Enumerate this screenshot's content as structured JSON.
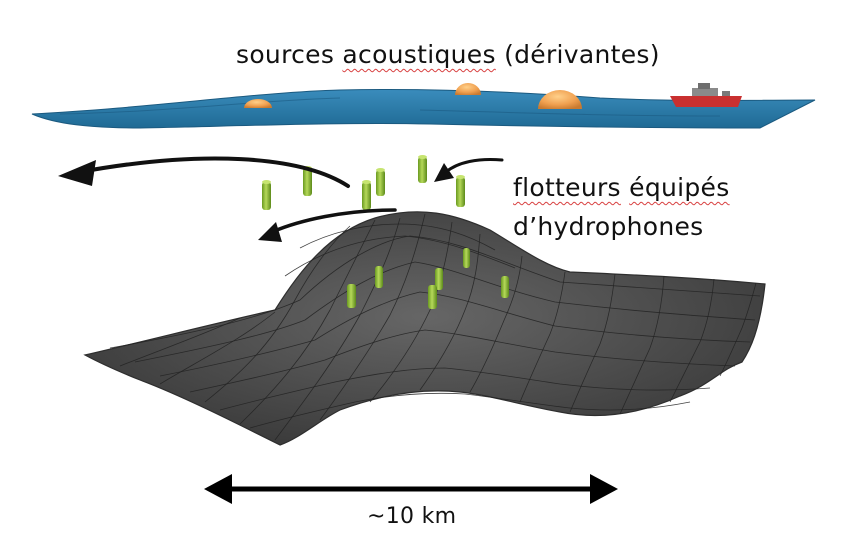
{
  "labels": {
    "sources_plain": "sources",
    "sources_underlined": "acoustiques",
    "sources_rest": "(dérivantes)",
    "floats_underlined": "flotteurs",
    "floats_rest": "équipés",
    "floats_line2": "d’hydrophones",
    "scale": "~10 km"
  },
  "colors": {
    "sea_surface": "#2a7aa8",
    "source_orange": "#f0a050",
    "ship_red": "#c93030",
    "float_green": "#8ab832",
    "seafloor": "#4f4f4f",
    "arrow": "#111111"
  }
}
